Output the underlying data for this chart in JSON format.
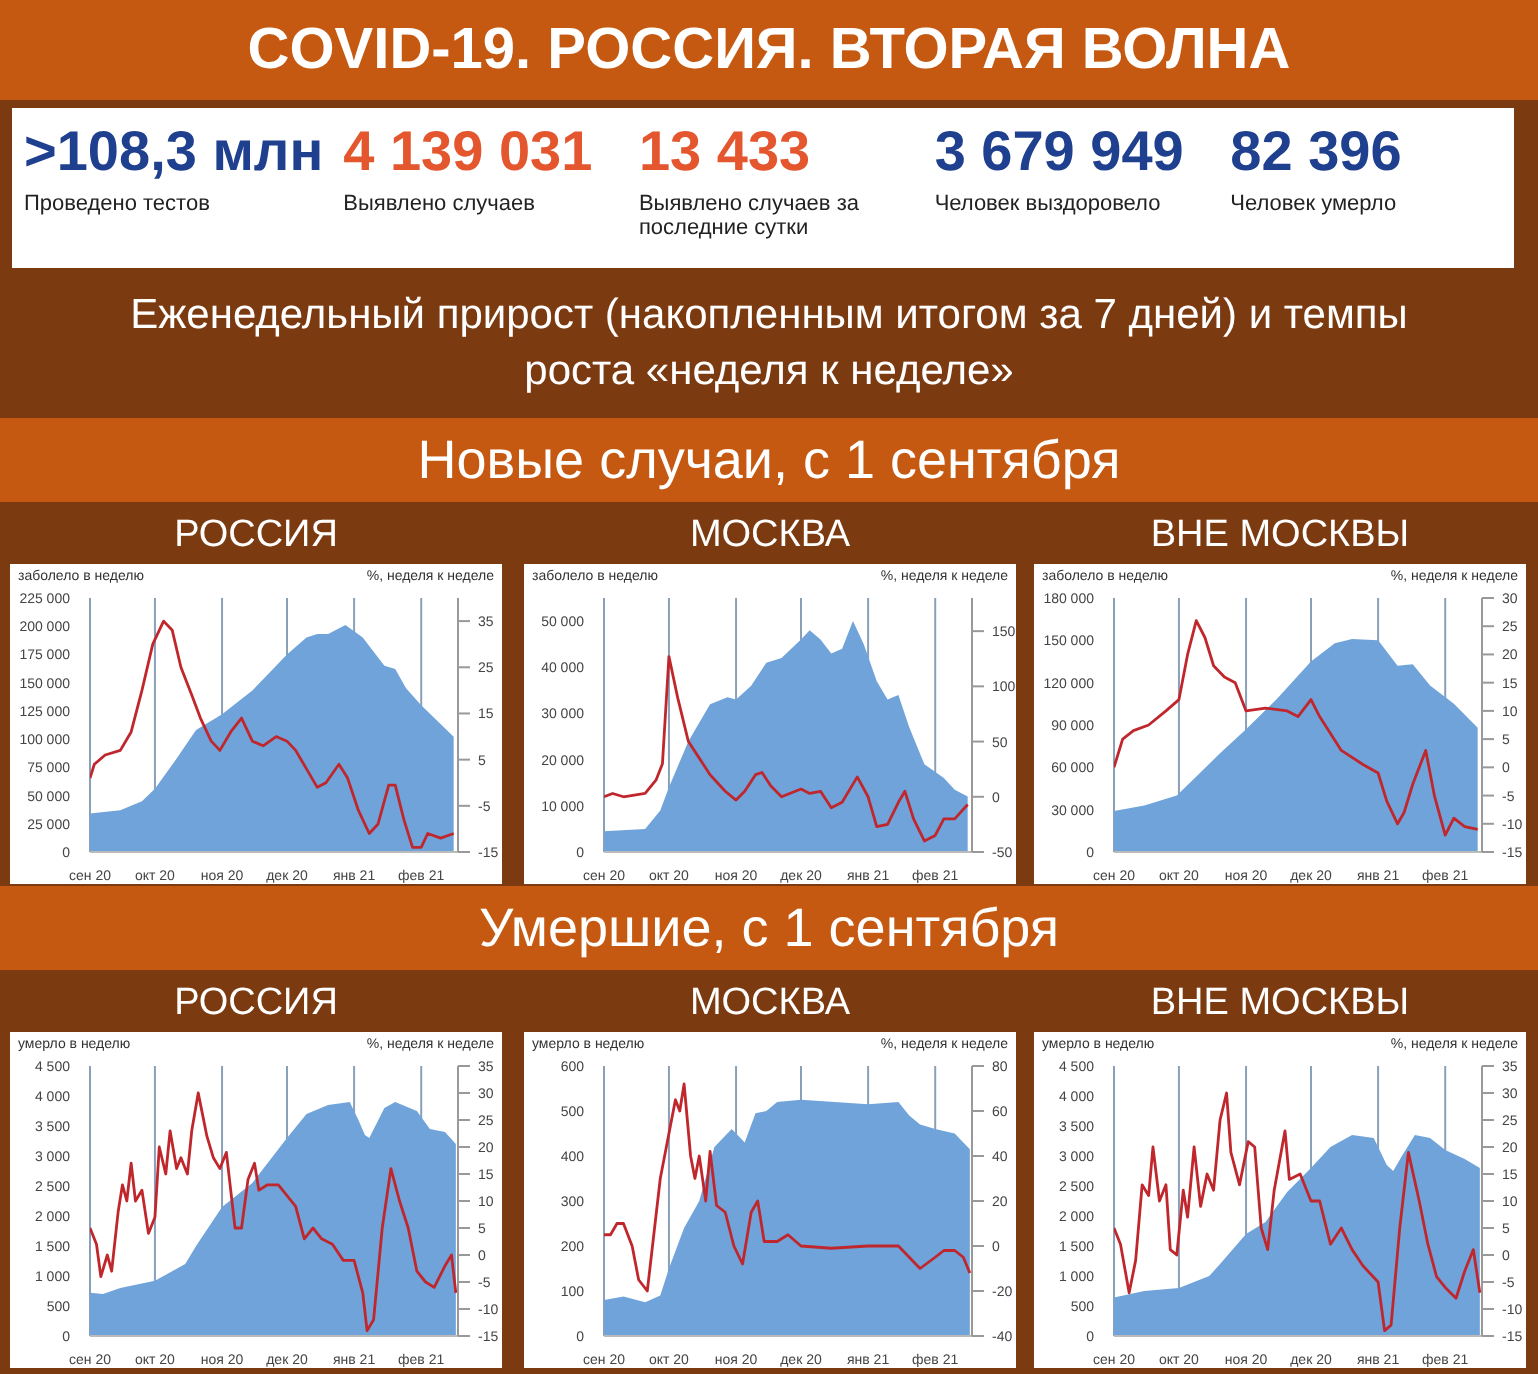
{
  "chart_data": [
    {
      "type": "other",
      "title": "COVID-19. РОССИЯ. ВТОРАЯ ВОЛНА",
      "subtitle": "Еженедельный прирост (накопленным итогом за 7 дней) и темпы роста «неделя к неделе»",
      "annotations": [
        ">108,3 млн",
        "Проведено тестов",
        "4 139 031",
        "Выявлено случаев",
        "13 433",
        "Выявлено случаев за последние сутки",
        "3 679 949",
        "Человек выздоровело",
        "82 396",
        "Человек умерло"
      ]
    },
    {
      "type": "other",
      "title": "Новые случаи, с 1 сентября"
    },
    {
      "type": "area",
      "title": "РОССИЯ",
      "ylabel": "заболело  в неделю",
      "y2label": "%, неделя к неделе",
      "grid": "x",
      "xlim": [
        "2020-09-01",
        "2021-02-18"
      ],
      "xticks": [
        {
          "value": "2020-09-01",
          "label": "сен 20"
        },
        {
          "value": "2020-10-01",
          "label": "окт 20"
        },
        {
          "value": "2020-11-01",
          "label": "ноя 20"
        },
        {
          "value": "2020-12-01",
          "label": "дек 20"
        },
        {
          "value": "2021-01-01",
          "label": "янв 21"
        },
        {
          "value": "2021-02-01",
          "label": "фев 21"
        }
      ],
      "ylim": [
        0,
        225000
      ],
      "yticks": [
        0,
        {
          "value": 25000,
          "label": "25 000"
        },
        {
          "value": 50000,
          "label": "50 000"
        },
        {
          "value": 75000,
          "label": "75 000"
        },
        {
          "value": 100000,
          "label": "100 000"
        },
        {
          "value": 125000,
          "label": "125 000"
        },
        {
          "value": 150000,
          "label": "150 000"
        },
        {
          "value": 175000,
          "label": "175 000"
        },
        {
          "value": 200000,
          "label": "200 000"
        },
        {
          "value": 225000,
          "label": "225 000"
        }
      ],
      "y2lim": [
        -15,
        40
      ],
      "y2ticks": [
        -15,
        -5,
        5,
        15,
        25,
        35
      ],
      "series": [
        {
          "type": "area",
          "color": "#6fa3da",
          "x": [
            "2020-09-01",
            "2020-09-15",
            "2020-09-25",
            "2020-10-01",
            "2020-10-10",
            "2020-10-20",
            "2020-11-01",
            "2020-11-15",
            "2020-12-01",
            "2020-12-10",
            "2020-12-15",
            "2020-12-20",
            "2020-12-28",
            "2021-01-05",
            "2021-01-15",
            "2021-01-20",
            "2021-01-25",
            "2021-02-01",
            "2021-02-16"
          ],
          "values": [
            34000,
            37000,
            45000,
            56000,
            80000,
            108000,
            122000,
            143000,
            175000,
            190000,
            193000,
            193000,
            201000,
            190000,
            165000,
            162000,
            145000,
            130000,
            102000
          ]
        },
        {
          "type": "line",
          "axis": "y2",
          "color": "#c0272d",
          "x": [
            "2020-09-01",
            "2020-09-03",
            "2020-09-08",
            "2020-09-15",
            "2020-09-20",
            "2020-09-25",
            "2020-09-30",
            "2020-10-05",
            "2020-10-09",
            "2020-10-13",
            "2020-10-18",
            "2020-10-22",
            "2020-10-27",
            "2020-10-31",
            "2020-11-05",
            "2020-11-10",
            "2020-11-15",
            "2020-11-20",
            "2020-11-26",
            "2020-12-01",
            "2020-12-05",
            "2020-12-10",
            "2020-12-15",
            "2020-12-19",
            "2020-12-25",
            "2020-12-29",
            "2021-01-03",
            "2021-01-08",
            "2021-01-12",
            "2021-01-17",
            "2021-01-20",
            "2021-01-24",
            "2021-01-28",
            "2021-02-01",
            "2021-02-04",
            "2021-02-10",
            "2021-02-16"
          ],
          "values": [
            1,
            4,
            6,
            7,
            11,
            20,
            30,
            35,
            33,
            25,
            19,
            14,
            9,
            7,
            11,
            14,
            9,
            8,
            10,
            9,
            7,
            3,
            -1,
            0,
            4,
            1,
            -6,
            -11,
            -9,
            -0.5,
            -0.5,
            -8,
            -14,
            -14,
            -11,
            -12,
            -11
          ]
        }
      ]
    },
    {
      "type": "area",
      "title": "МОСКВА",
      "ylabel": "заболело в неделю",
      "y2label": "%, неделя к неделе",
      "grid": "x",
      "xlim": [
        "2020-09-01",
        "2021-02-18"
      ],
      "xticks": [
        {
          "value": "2020-09-01",
          "label": "сен 20"
        },
        {
          "value": "2020-10-01",
          "label": "окт 20"
        },
        {
          "value": "2020-11-01",
          "label": "ноя 20"
        },
        {
          "value": "2020-12-01",
          "label": "дек 20"
        },
        {
          "value": "2021-01-01",
          "label": "янв 21"
        },
        {
          "value": "2021-02-01",
          "label": "фев 21"
        }
      ],
      "ylim": [
        0,
        55000
      ],
      "yticks": [
        0,
        {
          "value": 10000,
          "label": "10 000"
        },
        {
          "value": 20000,
          "label": "20 000"
        },
        {
          "value": 30000,
          "label": "30 000"
        },
        {
          "value": 40000,
          "label": "40 000"
        },
        {
          "value": 50000,
          "label": "50 000"
        }
      ],
      "y2lim": [
        -50,
        180
      ],
      "y2ticks": [
        -50,
        0,
        50,
        100,
        150
      ],
      "series": [
        {
          "type": "area",
          "color": "#6fa3da",
          "x": [
            "2020-09-01",
            "2020-09-20",
            "2020-09-27",
            "2020-10-01",
            "2020-10-10",
            "2020-10-20",
            "2020-10-28",
            "2020-11-01",
            "2020-11-08",
            "2020-11-15",
            "2020-11-22",
            "2020-12-01",
            "2020-12-05",
            "2020-12-10",
            "2020-12-15",
            "2020-12-20",
            "2020-12-25",
            "2020-12-30",
            "2021-01-05",
            "2021-01-10",
            "2021-01-15",
            "2021-01-20",
            "2021-01-27",
            "2021-02-05",
            "2021-02-10",
            "2021-02-16"
          ],
          "values": [
            4500,
            5000,
            9000,
            14000,
            24000,
            32000,
            33500,
            33000,
            36000,
            41000,
            42000,
            46000,
            48000,
            46000,
            43000,
            44000,
            50000,
            45000,
            37000,
            33000,
            34000,
            27000,
            19000,
            16000,
            13500,
            12000
          ]
        },
        {
          "type": "line",
          "axis": "y2",
          "color": "#c0272d",
          "x": [
            "2020-09-01",
            "2020-09-05",
            "2020-09-10",
            "2020-09-20",
            "2020-09-25",
            "2020-09-28",
            "2020-10-01",
            "2020-10-05",
            "2020-10-10",
            "2020-10-15",
            "2020-10-20",
            "2020-10-27",
            "2020-11-01",
            "2020-11-05",
            "2020-11-10",
            "2020-11-13",
            "2020-11-17",
            "2020-11-22",
            "2020-12-01",
            "2020-12-05",
            "2020-12-10",
            "2020-12-15",
            "2020-12-20",
            "2020-12-27",
            "2021-01-01",
            "2021-01-05",
            "2021-01-10",
            "2021-01-15",
            "2021-01-18",
            "2021-01-22",
            "2021-01-27",
            "2021-02-01",
            "2021-02-05",
            "2021-02-10",
            "2021-02-16"
          ],
          "values": [
            0,
            3,
            0,
            3,
            15,
            30,
            127,
            90,
            50,
            35,
            20,
            5,
            -3,
            5,
            20,
            22,
            10,
            0,
            7,
            3,
            5,
            -10,
            -5,
            18,
            0,
            -27,
            -25,
            -5,
            5,
            -20,
            -40,
            -35,
            -20,
            -20,
            -7
          ]
        }
      ]
    },
    {
      "type": "area",
      "title": "ВНЕ МОСКВЫ",
      "ylabel": "заболело в неделю",
      "y2label": "%, неделя к неделе",
      "grid": "x",
      "xlim": [
        "2020-09-01",
        "2021-02-18"
      ],
      "xticks": [
        {
          "value": "2020-09-01",
          "label": "сен 20"
        },
        {
          "value": "2020-10-01",
          "label": "окт 20"
        },
        {
          "value": "2020-11-01",
          "label": "ноя 20"
        },
        {
          "value": "2020-12-01",
          "label": "дек 20"
        },
        {
          "value": "2021-01-01",
          "label": "янв 21"
        },
        {
          "value": "2021-02-01",
          "label": "фев 21"
        }
      ],
      "ylim": [
        0,
        180000
      ],
      "yticks": [
        0,
        {
          "value": 30000,
          "label": "30 000"
        },
        {
          "value": 60000,
          "label": "60 000"
        },
        {
          "value": 90000,
          "label": "90 000"
        },
        {
          "value": 120000,
          "label": "120 000"
        },
        {
          "value": 150000,
          "label": "150 000"
        },
        {
          "value": 180000,
          "label": "180 000"
        }
      ],
      "y2lim": [
        -15,
        30
      ],
      "y2ticks": [
        -15,
        -10,
        -5,
        0,
        5,
        10,
        15,
        20,
        25,
        30
      ],
      "series": [
        {
          "type": "area",
          "color": "#6fa3da",
          "x": [
            "2020-09-01",
            "2020-09-15",
            "2020-09-30",
            "2020-10-10",
            "2020-10-20",
            "2020-11-01",
            "2020-11-15",
            "2020-12-01",
            "2020-12-12",
            "2020-12-20",
            "2021-01-01",
            "2021-01-10",
            "2021-01-17",
            "2021-01-25",
            "2021-02-05",
            "2021-02-16"
          ],
          "values": [
            29000,
            33000,
            40000,
            55000,
            70000,
            87000,
            108000,
            135000,
            148000,
            151000,
            150000,
            132000,
            133000,
            118000,
            105000,
            88000
          ]
        },
        {
          "type": "line",
          "axis": "y2",
          "color": "#c0272d",
          "x": [
            "2020-09-01",
            "2020-09-05",
            "2020-09-10",
            "2020-09-17",
            "2020-09-25",
            "2020-10-01",
            "2020-10-05",
            "2020-10-09",
            "2020-10-13",
            "2020-10-17",
            "2020-10-22",
            "2020-10-27",
            "2020-11-01",
            "2020-11-10",
            "2020-11-20",
            "2020-11-25",
            "2020-12-01",
            "2020-12-05",
            "2020-12-10",
            "2020-12-15",
            "2020-12-25",
            "2021-01-01",
            "2021-01-05",
            "2021-01-10",
            "2021-01-13",
            "2021-01-17",
            "2021-01-23",
            "2021-01-27",
            "2021-02-01",
            "2021-02-05",
            "2021-02-10",
            "2021-02-16"
          ],
          "values": [
            0,
            5,
            6.5,
            7.5,
            10,
            12,
            20,
            26,
            23,
            18,
            16,
            15,
            10,
            10.5,
            10,
            9,
            12,
            9,
            6,
            3,
            0.5,
            -1,
            -6,
            -10,
            -8,
            -3,
            3,
            -5,
            -12,
            -9,
            -10.5,
            -11
          ]
        }
      ]
    },
    {
      "type": "other",
      "title": "Умершие, с 1 сентября"
    },
    {
      "type": "area",
      "title": "РОССИЯ",
      "ylabel": "умерло в неделю",
      "y2label": "%, неделя к неделе",
      "grid": "x",
      "xlim": [
        "2020-09-01",
        "2021-02-18"
      ],
      "xticks": [
        {
          "value": "2020-09-01",
          "label": "сен 20"
        },
        {
          "value": "2020-10-01",
          "label": "окт 20"
        },
        {
          "value": "2020-11-01",
          "label": "ноя 20"
        },
        {
          "value": "2020-12-01",
          "label": "дек 20"
        },
        {
          "value": "2021-01-01",
          "label": "янв 21"
        },
        {
          "value": "2021-02-01",
          "label": "фев 21"
        }
      ],
      "ylim": [
        0,
        4500
      ],
      "yticks": [
        0,
        500,
        {
          "value": 1000,
          "label": "1 000"
        },
        {
          "value": 1500,
          "label": "1 500"
        },
        {
          "value": 2000,
          "label": "2 000"
        },
        {
          "value": 2500,
          "label": "2 500"
        },
        {
          "value": 3000,
          "label": "3 000"
        },
        {
          "value": 3500,
          "label": "3 500"
        },
        {
          "value": 4000,
          "label": "4 000"
        },
        {
          "value": 4500,
          "label": "4 500"
        }
      ],
      "y2lim": [
        -15,
        35
      ],
      "y2ticks": [
        -15,
        -10,
        -5,
        0,
        5,
        10,
        15,
        20,
        25,
        30,
        35
      ],
      "series": [
        {
          "type": "area",
          "color": "#6fa3da",
          "x": [
            "2020-09-01",
            "2020-09-07",
            "2020-09-15",
            "2020-10-01",
            "2020-10-15",
            "2020-10-20",
            "2020-11-01",
            "2020-11-15",
            "2020-12-01",
            "2020-12-10",
            "2020-12-20",
            "2020-12-30",
            "2021-01-03",
            "2021-01-06",
            "2021-01-08",
            "2021-01-15",
            "2021-01-20",
            "2021-01-30",
            "2021-02-05",
            "2021-02-12",
            "2021-02-17"
          ],
          "values": [
            720,
            700,
            800,
            920,
            1200,
            1500,
            2150,
            2550,
            3300,
            3700,
            3850,
            3900,
            3600,
            3350,
            3300,
            3800,
            3900,
            3750,
            3450,
            3400,
            3200
          ]
        },
        {
          "type": "line",
          "axis": "y2",
          "color": "#c0272d",
          "x": [
            "2020-09-01",
            "2020-09-04",
            "2020-09-06",
            "2020-09-09",
            "2020-09-11",
            "2020-09-14",
            "2020-09-16",
            "2020-09-18",
            "2020-09-20",
            "2020-09-22",
            "2020-09-25",
            "2020-09-28",
            "2020-10-01",
            "2020-10-03",
            "2020-10-06",
            "2020-10-08",
            "2020-10-11",
            "2020-10-13",
            "2020-10-16",
            "2020-10-18",
            "2020-10-21",
            "2020-10-23",
            "2020-10-25",
            "2020-10-28",
            "2020-10-31",
            "2020-11-03",
            "2020-11-07",
            "2020-11-10",
            "2020-11-13",
            "2020-11-16",
            "2020-11-18",
            "2020-11-22",
            "2020-11-27",
            "2020-12-01",
            "2020-12-05",
            "2020-12-09",
            "2020-12-13",
            "2020-12-17",
            "2020-12-22",
            "2020-12-27",
            "2021-01-01",
            "2021-01-05",
            "2021-01-07",
            "2021-01-10",
            "2021-01-14",
            "2021-01-18",
            "2021-01-22",
            "2021-01-26",
            "2021-01-30",
            "2021-02-03",
            "2021-02-07",
            "2021-02-12",
            "2021-02-15",
            "2021-02-17"
          ],
          "values": [
            5,
            2,
            -4,
            0,
            -3,
            8,
            13,
            10,
            17,
            10,
            12,
            4,
            7,
            20,
            15,
            23,
            16,
            18,
            15,
            23,
            30,
            26,
            22,
            18,
            16,
            19,
            5,
            5,
            14,
            17,
            12,
            13,
            13,
            11,
            9,
            3,
            5,
            3,
            2,
            -1,
            -1,
            -7,
            -14,
            -12,
            5,
            16,
            10,
            5,
            -3,
            -5,
            -6,
            -2,
            0,
            -7
          ]
        }
      ]
    },
    {
      "type": "area",
      "title": "МОСКВА",
      "ylabel": "умерло в неделю",
      "y2label": "%, неделя к неделе",
      "grid": "x",
      "xlim": [
        "2020-09-01",
        "2021-02-18"
      ],
      "xticks": [
        {
          "value": "2020-09-01",
          "label": "сен 20"
        },
        {
          "value": "2020-10-01",
          "label": "окт 20"
        },
        {
          "value": "2020-11-01",
          "label": "ноя 20"
        },
        {
          "value": "2020-12-01",
          "label": "дек 20"
        },
        {
          "value": "2021-01-01",
          "label": "янв 21"
        },
        {
          "value": "2021-02-01",
          "label": "фев 21"
        }
      ],
      "ylim": [
        0,
        600
      ],
      "yticks": [
        0,
        100,
        200,
        300,
        400,
        500,
        600
      ],
      "y2lim": [
        -40,
        80
      ],
      "y2ticks": [
        -40,
        -20,
        0,
        20,
        40,
        60,
        80
      ],
      "series": [
        {
          "type": "area",
          "color": "#6fa3da",
          "x": [
            "2020-09-01",
            "2020-09-10",
            "2020-09-20",
            "2020-09-27",
            "2020-10-01",
            "2020-10-08",
            "2020-10-15",
            "2020-10-22",
            "2020-10-30",
            "2020-11-05",
            "2020-11-10",
            "2020-11-15",
            "2020-11-20",
            "2020-12-01",
            "2021-01-01",
            "2021-01-15",
            "2021-01-20",
            "2021-01-25",
            "2021-02-01",
            "2021-02-10",
            "2021-02-17"
          ],
          "values": [
            80,
            88,
            75,
            90,
            150,
            240,
            300,
            420,
            460,
            430,
            495,
            500,
            520,
            525,
            515,
            520,
            490,
            470,
            460,
            450,
            415
          ]
        },
        {
          "type": "line",
          "axis": "y2",
          "color": "#c0272d",
          "x": [
            "2020-09-01",
            "2020-09-04",
            "2020-09-07",
            "2020-09-10",
            "2020-09-14",
            "2020-09-17",
            "2020-09-21",
            "2020-09-24",
            "2020-09-27",
            "2020-10-01",
            "2020-10-04",
            "2020-10-06",
            "2020-10-08",
            "2020-10-11",
            "2020-10-13",
            "2020-10-15",
            "2020-10-18",
            "2020-10-20",
            "2020-10-23",
            "2020-10-27",
            "2020-10-31",
            "2020-11-04",
            "2020-11-08",
            "2020-11-11",
            "2020-11-14",
            "2020-11-20",
            "2020-11-25",
            "2020-12-01",
            "2020-12-15",
            "2021-01-01",
            "2021-01-15",
            "2021-01-20",
            "2021-01-25",
            "2021-02-01",
            "2021-02-05",
            "2021-02-10",
            "2021-02-14",
            "2021-02-17"
          ],
          "values": [
            5,
            5,
            10,
            10,
            0,
            -15,
            -20,
            5,
            30,
            50,
            65,
            60,
            72,
            40,
            30,
            40,
            20,
            42,
            18,
            15,
            0,
            -8,
            15,
            20,
            2,
            2,
            5,
            0,
            -1,
            0,
            0,
            -5,
            -10,
            -5,
            -2,
            -2,
            -5,
            -12
          ]
        }
      ]
    },
    {
      "type": "area",
      "title": "ВНЕ МОСКВЫ",
      "ylabel": "умерло в неделю",
      "y2label": "%, неделя к неделе",
      "grid": "x",
      "xlim": [
        "2020-09-01",
        "2021-02-18"
      ],
      "xticks": [
        {
          "value": "2020-09-01",
          "label": "сен 20"
        },
        {
          "value": "2020-10-01",
          "label": "окт 20"
        },
        {
          "value": "2020-11-01",
          "label": "ноя 20"
        },
        {
          "value": "2020-12-01",
          "label": "дек 20"
        },
        {
          "value": "2021-01-01",
          "label": "янв 21"
        },
        {
          "value": "2021-02-01",
          "label": "фев 21"
        }
      ],
      "ylim": [
        0,
        4500
      ],
      "yticks": [
        0,
        500,
        {
          "value": 1000,
          "label": "1 000"
        },
        {
          "value": 1500,
          "label": "1 500"
        },
        {
          "value": 2000,
          "label": "2 000"
        },
        {
          "value": 2500,
          "label": "2 500"
        },
        {
          "value": 3000,
          "label": "3 000"
        },
        {
          "value": 3500,
          "label": "3 500"
        },
        {
          "value": 4000,
          "label": "4 000"
        },
        {
          "value": 4500,
          "label": "4 500"
        }
      ],
      "y2lim": [
        -15,
        35
      ],
      "y2ticks": [
        -15,
        -10,
        -5,
        0,
        5,
        10,
        15,
        20,
        25,
        30,
        35
      ],
      "series": [
        {
          "type": "area",
          "color": "#6fa3da",
          "x": [
            "2020-09-01",
            "2020-09-15",
            "2020-10-01",
            "2020-10-15",
            "2020-10-20",
            "2020-11-01",
            "2020-11-10",
            "2020-11-20",
            "2020-12-01",
            "2020-12-10",
            "2020-12-20",
            "2020-12-30",
            "2021-01-05",
            "2021-01-08",
            "2021-01-12",
            "2021-01-18",
            "2021-01-25",
            "2021-02-01",
            "2021-02-10",
            "2021-02-17"
          ],
          "values": [
            640,
            750,
            800,
            1000,
            1200,
            1700,
            1900,
            2400,
            2800,
            3150,
            3350,
            3300,
            2850,
            2750,
            3000,
            3350,
            3300,
            3100,
            2950,
            2800
          ]
        },
        {
          "type": "line",
          "axis": "y2",
          "color": "#c0272d",
          "x": [
            "2020-09-01",
            "2020-09-04",
            "2020-09-08",
            "2020-09-11",
            "2020-09-14",
            "2020-09-17",
            "2020-09-19",
            "2020-09-22",
            "2020-09-25",
            "2020-09-27",
            "2020-09-30",
            "2020-10-03",
            "2020-10-05",
            "2020-10-08",
            "2020-10-11",
            "2020-10-14",
            "2020-10-17",
            "2020-10-20",
            "2020-10-23",
            "2020-10-25",
            "2020-10-29",
            "2020-11-02",
            "2020-11-05",
            "2020-11-08",
            "2020-11-11",
            "2020-11-14",
            "2020-11-19",
            "2020-11-21",
            "2020-11-26",
            "2020-12-01",
            "2020-12-05",
            "2020-12-10",
            "2020-12-15",
            "2020-12-20",
            "2020-12-25",
            "2021-01-01",
            "2021-01-04",
            "2021-01-07",
            "2021-01-11",
            "2021-01-15",
            "2021-01-20",
            "2021-01-24",
            "2021-01-28",
            "2021-02-01",
            "2021-02-06",
            "2021-02-10",
            "2021-02-14",
            "2021-02-17"
          ],
          "values": [
            5,
            2,
            -7,
            -1,
            13,
            11,
            20,
            10,
            13,
            1,
            0,
            12,
            7,
            20,
            9,
            15,
            12,
            25,
            30,
            19,
            13,
            21,
            20,
            5,
            1,
            12,
            23,
            14,
            15,
            10,
            10,
            2,
            5,
            1,
            -2,
            -5,
            -14,
            -13,
            5,
            19,
            10,
            2,
            -4,
            -6,
            -8,
            -3,
            1,
            -7
          ]
        }
      ]
    }
  ]
}
